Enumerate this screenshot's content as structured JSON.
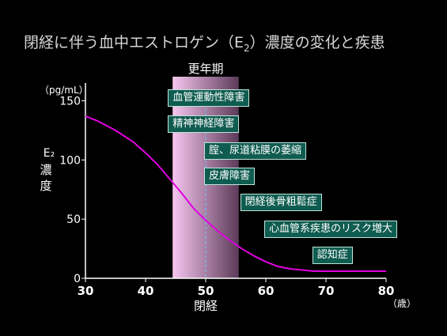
{
  "chart_data": {
    "type": "line",
    "title_main": "閉経に伴う血中エストロゲン（E",
    "title_sub": "2",
    "title_rest": "）濃度の変化と疾患",
    "unit_label": "（pg/mL）",
    "ylabel": "E₂ 濃度",
    "xlabel": "閉経",
    "x_unit": "（歳）",
    "band_label": "更年期",
    "band_range": [
      44.5,
      55.5
    ],
    "menopause_x": 50,
    "xlim": [
      30,
      80
    ],
    "ylim": [
      0,
      165
    ],
    "x_ticks": [
      30,
      40,
      50,
      60,
      70,
      80
    ],
    "y_ticks": [
      0,
      50,
      100,
      150
    ],
    "series": [
      {
        "color": "#e000e0",
        "x": [
          30,
          32,
          35,
          38,
          40,
          42,
          44,
          46,
          48,
          50,
          52,
          54,
          56,
          58,
          60,
          62,
          64,
          66,
          68,
          70,
          75,
          80
        ],
        "y": [
          137,
          133,
          125,
          115,
          106,
          96,
          84,
          72,
          59,
          49,
          40,
          32,
          25,
          19,
          14,
          10,
          8,
          7,
          6,
          6,
          6,
          6
        ]
      }
    ],
    "annotations": [
      {
        "text": "血管運動性障害",
        "x": 44
      },
      {
        "text": "精神神経障害",
        "x": 44
      },
      {
        "text": "腟、尿道粘膜の萎縮",
        "x": 50
      },
      {
        "text": "皮膚障害",
        "x": 50
      },
      {
        "text": "閉経後骨粗鬆症",
        "x": 56
      },
      {
        "text": "心血管系疾患のリスク増大",
        "x": 60
      },
      {
        "text": "認知症",
        "x": 68
      }
    ]
  },
  "colors": {
    "band_left": "#f6c6f0",
    "band_right": "#5c3a58",
    "axis": "#ffffff",
    "curve": "#e000e0",
    "menopause_line": "#5fd0ff",
    "title": "#d6d6d6"
  }
}
